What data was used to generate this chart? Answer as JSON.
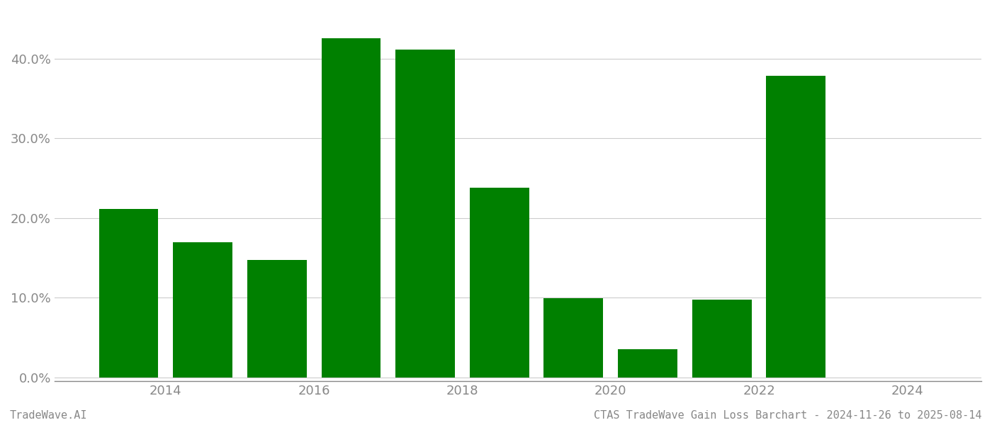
{
  "bar_positions": [
    2013.5,
    2014.5,
    2015.5,
    2016.5,
    2017.5,
    2018.5,
    2019.5,
    2020.5,
    2021.5,
    2022.5,
    2023.5
  ],
  "values": [
    0.211,
    0.169,
    0.147,
    0.425,
    0.411,
    0.238,
    0.099,
    0.035,
    0.097,
    0.378,
    0.0
  ],
  "bar_color": "#008000",
  "background_color": "#ffffff",
  "ylabel_ticks": [
    0.0,
    0.1,
    0.2,
    0.3,
    0.4
  ],
  "ytick_labels": [
    "0.0%",
    "10.0%",
    "20.0%",
    "30.0%",
    "40.0%"
  ],
  "xlim": [
    2012.5,
    2025.0
  ],
  "ylim": [
    -0.005,
    0.46
  ],
  "xlabel_ticks": [
    2014,
    2016,
    2018,
    2020,
    2022,
    2024
  ],
  "bar_width": 0.8,
  "grid_color": "#cccccc",
  "axis_color": "#888888",
  "tick_color": "#888888",
  "footer_left": "TradeWave.AI",
  "footer_right": "CTAS TradeWave Gain Loss Barchart - 2024-11-26 to 2025-08-14",
  "footer_fontsize": 11,
  "tick_fontsize": 13
}
